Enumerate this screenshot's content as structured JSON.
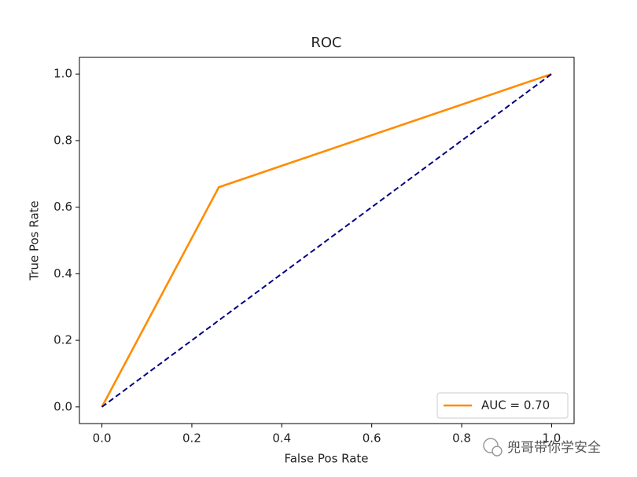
{
  "chart_data": {
    "type": "line",
    "title": "ROC",
    "xlabel": "False Pos Rate",
    "ylabel": "True Pos Rate",
    "series": [
      {
        "name": "AUC = 0.70",
        "color": "#ff8c00",
        "linestyle": "solid",
        "x": [
          0,
          0.26,
          1
        ],
        "y": [
          0,
          0.66,
          1
        ]
      },
      {
        "color": "#000080",
        "linestyle": "dashed",
        "x": [
          0,
          1
        ],
        "y": [
          0,
          1
        ]
      }
    ],
    "xlim": [
      -0.05,
      1.05
    ],
    "ylim": [
      -0.05,
      1.05
    ],
    "xticks": [
      {
        "value": 0,
        "label": "0.0"
      },
      {
        "value": 0.2,
        "label": "0.2"
      },
      {
        "value": 0.4,
        "label": "0.4"
      },
      {
        "value": 0.6,
        "label": "0.6"
      },
      {
        "value": 0.8,
        "label": "0.8"
      },
      {
        "value": 1,
        "label": "1.0"
      }
    ],
    "yticks": [
      {
        "value": 0,
        "label": "0.0"
      },
      {
        "value": 0.2,
        "label": "0.2"
      },
      {
        "value": 0.4,
        "label": "0.4"
      },
      {
        "value": 0.6,
        "label": "0.6"
      },
      {
        "value": 0.8,
        "label": "0.8"
      },
      {
        "value": 1,
        "label": "1.0"
      }
    ],
    "grid": false,
    "legend": "lower right",
    "watermark": "兜哥带你学安全"
  }
}
